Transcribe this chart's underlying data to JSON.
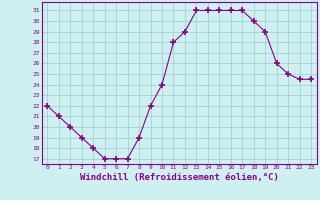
{
  "x": [
    0,
    1,
    2,
    3,
    4,
    5,
    6,
    7,
    8,
    9,
    10,
    11,
    12,
    13,
    14,
    15,
    16,
    17,
    18,
    19,
    20,
    21,
    22,
    23
  ],
  "y": [
    22,
    21,
    20,
    19,
    18,
    17,
    17,
    17,
    19,
    22,
    24,
    28,
    29,
    31,
    31,
    31,
    31,
    31,
    30,
    29,
    26,
    25,
    24.5,
    24.5
  ],
  "line_color": "#880088",
  "marker": "+",
  "marker_size": 4,
  "bg_color": "#cff0f0",
  "grid_color": "#99cccc",
  "xlabel": "Windchill (Refroidissement éolien,°C)",
  "xlabel_fontsize": 6.5,
  "yticks": [
    17,
    18,
    19,
    20,
    21,
    22,
    23,
    24,
    25,
    26,
    27,
    28,
    29,
    30,
    31
  ],
  "xticks": [
    0,
    1,
    2,
    3,
    4,
    5,
    6,
    7,
    8,
    9,
    10,
    11,
    12,
    13,
    14,
    15,
    16,
    17,
    18,
    19,
    20,
    21,
    22,
    23
  ],
  "ylim": [
    16.5,
    31.8
  ],
  "xlim": [
    -0.5,
    23.5
  ]
}
